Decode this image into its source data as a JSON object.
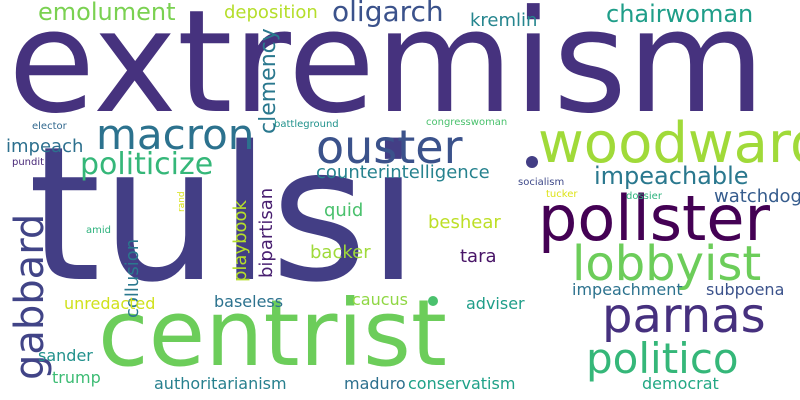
{
  "words": [
    {
      "text": "extremism",
      "color": "#46327e",
      "rotate": false
    },
    {
      "text": "tulsi",
      "color": "#433e85",
      "rotate": false
    },
    {
      "text": "centrist",
      "color": "#6ccd5a",
      "rotate": false
    },
    {
      "text": "pollster",
      "color": "#440154",
      "rotate": false
    },
    {
      "text": "woodward",
      "color": "#a0da39",
      "rotate": false
    },
    {
      "text": "lobbyist",
      "color": "#6ccd5a",
      "rotate": false
    },
    {
      "text": "parnas",
      "color": "#46307e",
      "rotate": false
    },
    {
      "text": "ouster",
      "color": "#3b528b",
      "rotate": false
    },
    {
      "text": "macron",
      "color": "#2c728e",
      "rotate": false
    },
    {
      "text": "politico",
      "color": "#35b779",
      "rotate": false
    },
    {
      "text": "gabbard",
      "color": "#414487",
      "rotate": true
    },
    {
      "text": "politicize",
      "color": "#35b779",
      "rotate": false
    },
    {
      "text": "oligarch",
      "color": "#3b528b",
      "rotate": false
    },
    {
      "text": "chairwoman",
      "color": "#1f9e89",
      "rotate": false
    },
    {
      "text": "emolument",
      "color": "#7ad151",
      "rotate": false
    },
    {
      "text": "impeachable",
      "color": "#2a788e",
      "rotate": false
    },
    {
      "text": "deposition",
      "color": "#b5de2b",
      "rotate": false
    },
    {
      "text": "kremlin",
      "color": "#25858e",
      "rotate": false
    },
    {
      "text": "clemency",
      "color": "#2a788e",
      "rotate": true
    },
    {
      "text": "counterintelligence",
      "color": "#26828e",
      "rotate": false
    },
    {
      "text": "watchdog",
      "color": "#365c8d",
      "rotate": false
    },
    {
      "text": "impeach",
      "color": "#2d708e",
      "rotate": false
    },
    {
      "text": "bipartisan",
      "color": "#481f70",
      "rotate": true
    },
    {
      "text": "playbook",
      "color": "#b5de2b",
      "rotate": true
    },
    {
      "text": "collusion",
      "color": "#2a788e",
      "rotate": true
    },
    {
      "text": "beshear",
      "color": "#bddf26",
      "rotate": false
    },
    {
      "text": "quid",
      "color": "#4ac16d",
      "rotate": false
    },
    {
      "text": "backer",
      "color": "#9fda3a",
      "rotate": false
    },
    {
      "text": "tara",
      "color": "#481467",
      "rotate": false
    },
    {
      "text": "impeachment",
      "color": "#2c728e",
      "rotate": false
    },
    {
      "text": "subpoena",
      "color": "#3b528b",
      "rotate": false
    },
    {
      "text": "baseless",
      "color": "#2c728e",
      "rotate": false
    },
    {
      "text": "caucus",
      "color": "#8fd744",
      "rotate": false
    },
    {
      "text": "adviser",
      "color": "#1f9e89",
      "rotate": false
    },
    {
      "text": "unredacted",
      "color": "#d0e11c",
      "rotate": false
    },
    {
      "text": "sander",
      "color": "#21918c",
      "rotate": false
    },
    {
      "text": "trump",
      "color": "#3dbc74",
      "rotate": false
    },
    {
      "text": "authoritarianism",
      "color": "#27808e",
      "rotate": false
    },
    {
      "text": "maduro",
      "color": "#2d708e",
      "rotate": false
    },
    {
      "text": "conservatism",
      "color": "#1fa188",
      "rotate": false
    },
    {
      "text": "democrat",
      "color": "#22a884",
      "rotate": false
    },
    {
      "text": "socialism",
      "color": "#3e4989",
      "rotate": false
    },
    {
      "text": "tucker",
      "color": "#dde318",
      "rotate": false
    },
    {
      "text": "dossier",
      "color": "#2db27d",
      "rotate": false
    },
    {
      "text": "elector",
      "color": "#31688e",
      "rotate": false
    },
    {
      "text": "battleground",
      "color": "#20928c",
      "rotate": false
    },
    {
      "text": "congresswoman",
      "color": "#4ac16d",
      "rotate": false
    },
    {
      "text": "pundit",
      "color": "#482878",
      "rotate": false
    },
    {
      "text": "rand",
      "color": "#d8e219",
      "rotate": true
    },
    {
      "text": "amid",
      "color": "#2db27d",
      "rotate": false
    }
  ]
}
